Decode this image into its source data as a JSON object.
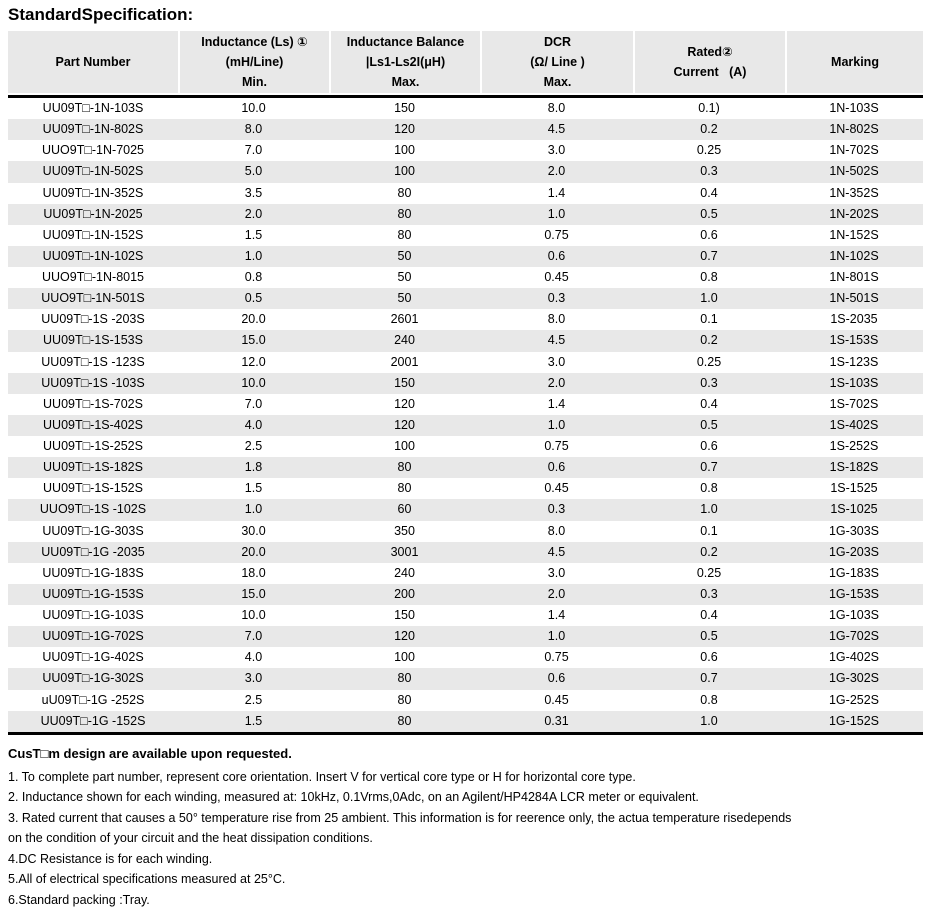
{
  "page": {
    "title": "StandardSpecification:"
  },
  "colors": {
    "header_bg": "#e8e8e8",
    "stripe_bg": "#e8e8e8",
    "rule": "#000000",
    "text": "#000000"
  },
  "table": {
    "columns": [
      {
        "id": "part-number",
        "lines": [
          "Part Number"
        ]
      },
      {
        "id": "inductance-min",
        "lines": [
          "Inductance (Ls) ①",
          "(mH/Line)",
          "Min."
        ]
      },
      {
        "id": "inductance-balance",
        "lines": [
          "Inductance Balance",
          "|Ls1-Ls2I(μH)",
          "Max."
        ]
      },
      {
        "id": "dcr-max",
        "lines": [
          "DCR",
          "(Ω/ Line )",
          "Max."
        ]
      },
      {
        "id": "rated-current",
        "lines": [
          "Rated②",
          "Current   (A)"
        ]
      },
      {
        "id": "marking",
        "lines": [
          "Marking"
        ]
      }
    ],
    "rows": [
      [
        "UU09T□-1N-103S",
        "10.0",
        "150",
        "8.0",
        "0.1)",
        "1N-103S"
      ],
      [
        "UU09T□-1N-802S",
        "8.0",
        "120",
        "4.5",
        "0.2",
        "1N-802S"
      ],
      [
        "UUO9T□-1N-7025",
        "7.0",
        "100",
        "3.0",
        "0.25",
        "1N-702S"
      ],
      [
        "UU09T□-1N-502S",
        "5.0",
        "100",
        "2.0",
        "0.3",
        "1N-502S"
      ],
      [
        "UU09T□-1N-352S",
        "3.5",
        "80",
        "1.4",
        "0.4",
        "1N-352S"
      ],
      [
        "UU09T□-1N-2025",
        "2.0",
        "80",
        "1.0",
        "0.5",
        "1N-202S"
      ],
      [
        "UU09T□-1N-152S",
        "1.5",
        "80",
        "0.75",
        "0.6",
        "1N-152S"
      ],
      [
        "UU09T□-1N-102S",
        "1.0",
        "50",
        "0.6",
        "0.7",
        "1N-102S"
      ],
      [
        "UUO9T□-1N-8015",
        "0.8",
        "50",
        "0.45",
        "0.8",
        "1N-801S"
      ],
      [
        "UUO9T□-1N-501S",
        "0.5",
        "50",
        "0.3",
        "1.0",
        "1N-501S"
      ],
      [
        "UU09T□-1S -203S",
        "20.0",
        "2601",
        "8.0",
        "0.1",
        "1S-2035"
      ],
      [
        "UU09T□-1S-153S",
        "15.0",
        "240",
        "4.5",
        "0.2",
        "1S-153S"
      ],
      [
        "UU09T□-1S -123S",
        "12.0",
        "2001",
        "3.0",
        "0.25",
        "1S-123S"
      ],
      [
        "UU09T□-1S -103S",
        "10.0",
        "150",
        "2.0",
        "0.3",
        "1S-103S"
      ],
      [
        "UU09T□-1S-702S",
        "7.0",
        "120",
        "1.4",
        "0.4",
        "1S-702S"
      ],
      [
        "UU09T□-1S-402S",
        "4.0",
        "120",
        "1.0",
        "0.5",
        "1S-402S"
      ],
      [
        "UU09T□-1S-252S",
        "2.5",
        "100",
        "0.75",
        "0.6",
        "1S-252S"
      ],
      [
        "UU09T□-1S-182S",
        "1.8",
        "80",
        "0.6",
        "0.7",
        "1S-182S"
      ],
      [
        "UU09T□-1S-152S",
        "1.5",
        "80",
        "0.45",
        "0.8",
        "1S-1525"
      ],
      [
        "UUO9T□-1S -102S",
        "1.0",
        "60",
        "0.3",
        "1.0",
        "1S-1025"
      ],
      [
        "UU09T□-1G-303S",
        "30.0",
        "350",
        "8.0",
        "0.1",
        "1G-303S"
      ],
      [
        "UU09T□-1G -2035",
        "20.0",
        "3001",
        "4.5",
        "0.2",
        "1G-203S"
      ],
      [
        "UU09T□-1G-183S",
        "18.0",
        "240",
        "3.0",
        "0.25",
        "1G-183S"
      ],
      [
        "UU09T□-1G-153S",
        "15.0",
        "200",
        "2.0",
        "0.3",
        "1G-153S"
      ],
      [
        "UU09T□-1G-103S",
        "10.0",
        "150",
        "1.4",
        "0.4",
        "1G-103S"
      ],
      [
        "UU09T□-1G-702S",
        "7.0",
        "120",
        "1.0",
        "0.5",
        "1G-702S"
      ],
      [
        "UU09T□-1G-402S",
        "4.0",
        "100",
        "0.75",
        "0.6",
        "1G-402S"
      ],
      [
        "UU09T□-1G-302S",
        "3.0",
        "80",
        "0.6",
        "0.7",
        "1G-302S"
      ],
      [
        "uU09T□-1G -252S",
        "2.5",
        "80",
        "0.45",
        "0.8",
        "1G-252S"
      ],
      [
        "UU09T□-1G -152S",
        "1.5",
        "80",
        "0.31",
        "1.0",
        "1G-152S"
      ]
    ]
  },
  "footer": {
    "bold_line": "CusT□m design are available upon requested.",
    "notes": [
      "1. To complete part number,  represent core orientation. Insert V for vertical core type or H for horizontal core type.",
      "2. Inductance shown for each winding, measured at: 10kHz, 0.1Vrms,0Adc, on an Agilent/HP4284A LCR meter or equivalent.",
      "3. Rated current that causes a 50° temperature rise from 25 ambient. This information is for reerence only, the actua temperature risedepends\non the condition of your circuit and the heat dissipation conditions.",
      "4.DC Resistance is for each winding.",
      "5.All of electrical specifications measured at 25°C.",
      "6.Standard packing :Tray."
    ]
  }
}
